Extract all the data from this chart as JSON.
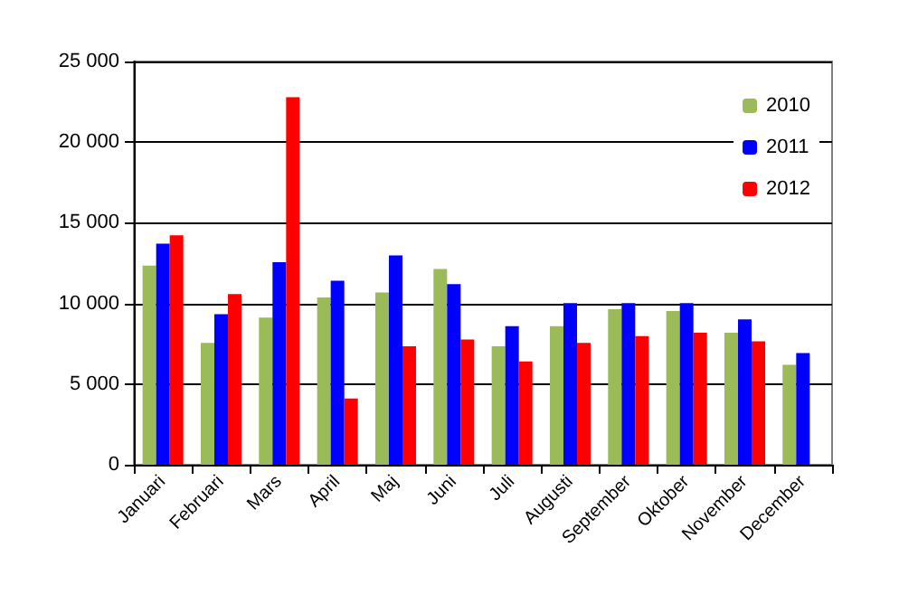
{
  "chart_data": {
    "type": "bar",
    "categories": [
      "Januari",
      "Februari",
      "Mars",
      "April",
      "Maj",
      "Juni",
      "Juli",
      "Augusti",
      "September",
      "Oktober",
      "November",
      "December"
    ],
    "series": [
      {
        "name": "2010",
        "color": "#9bbb59",
        "values": [
          12350,
          7550,
          9120,
          10370,
          10680,
          12140,
          7340,
          8590,
          9640,
          9530,
          8180,
          6190
        ]
      },
      {
        "name": "2011",
        "color": "#0000ff",
        "values": [
          13710,
          9330,
          12560,
          11410,
          12980,
          11200,
          8590,
          10020,
          10020,
          10020,
          9010,
          6920
        ]
      },
      {
        "name": "2012",
        "color": "#ff0000",
        "values": [
          14230,
          10580,
          22790,
          4110,
          7340,
          7760,
          6400,
          7550,
          7970,
          8180,
          7650,
          null
        ]
      }
    ],
    "ylim": [
      0,
      25000
    ],
    "yticks": [
      {
        "value": 0,
        "label": "0"
      },
      {
        "value": 5000,
        "label": "5 000"
      },
      {
        "value": 10000,
        "label": "10 000"
      },
      {
        "value": 15000,
        "label": "15 000"
      },
      {
        "value": 20000,
        "label": "20 000"
      },
      {
        "value": 25000,
        "label": "25 000"
      }
    ],
    "grid": "y",
    "legend": "top right"
  }
}
